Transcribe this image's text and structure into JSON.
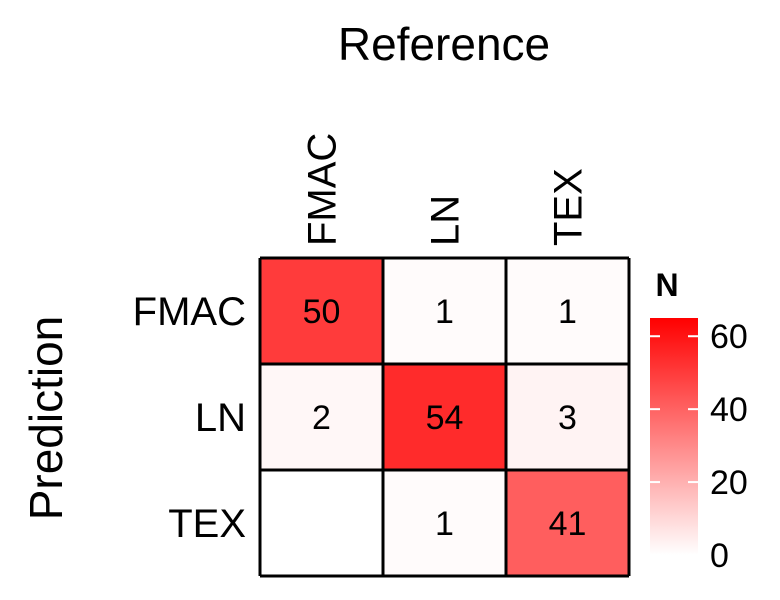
{
  "chart_data": {
    "type": "heatmap",
    "title": "Reference",
    "xlabel": "Reference",
    "ylabel": "Prediction",
    "x_categories": [
      "FMAC",
      "LN",
      "TEX"
    ],
    "y_categories": [
      "FMAC",
      "LN",
      "TEX"
    ],
    "values": [
      [
        50,
        1,
        1
      ],
      [
        2,
        54,
        3
      ],
      [
        null,
        1,
        41
      ]
    ],
    "legend": {
      "title": "N",
      "ticks": [
        0,
        20,
        40,
        60
      ],
      "range": [
        0,
        65
      ],
      "placement": "right",
      "color_low": "#ffffff",
      "color_high": "#ff0000"
    }
  }
}
